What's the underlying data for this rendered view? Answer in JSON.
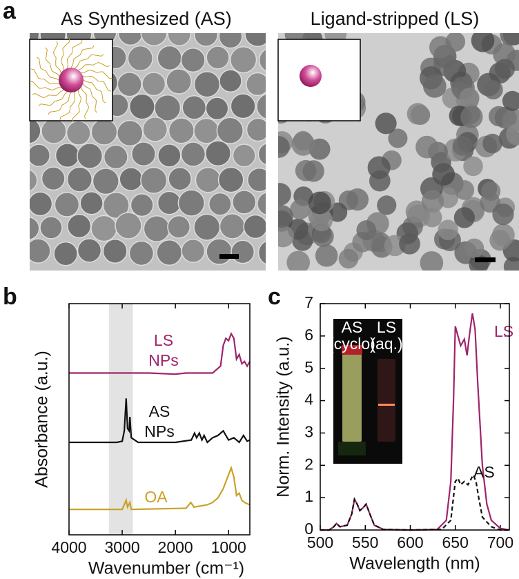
{
  "panel_labels": [
    "a",
    "b",
    "c"
  ],
  "images": [
    {
      "title": "As Synthesized (AS)"
    },
    {
      "title": "Ligand-stripped (LS)"
    }
  ],
  "chart_data": [
    {
      "type": "line",
      "xlabel": "Wavenumber (cm⁻¹)",
      "ylabel": "Absorbance (a.u.)",
      "xlim": [
        4000,
        600
      ],
      "xticks": [
        4000,
        3000,
        2000,
        1000
      ],
      "ylim": [
        0,
        10
      ],
      "shade": [
        3250,
        2800
      ],
      "annotations": [
        "LS",
        "NPs",
        "AS",
        "NPs",
        "OA"
      ],
      "series": [
        {
          "color": "#a0236a",
          "x": [
            4000,
            3000,
            2500,
            2000,
            1800,
            1300,
            1150,
            1100,
            1050,
            1000,
            950,
            900,
            850,
            800,
            750,
            700,
            650,
            600
          ],
          "values": [
            7.0,
            7.0,
            7.0,
            6.95,
            7.0,
            7.0,
            7.3,
            8.2,
            8.5,
            8.4,
            8.7,
            8.5,
            7.6,
            7.8,
            7.4,
            7.5,
            7.3,
            7.5
          ]
        },
        {
          "color": "#111111",
          "x": [
            4000,
            3100,
            3000,
            2960,
            2925,
            2900,
            2870,
            2855,
            2830,
            2700,
            2000,
            1700,
            1640,
            1600,
            1550,
            1500,
            1460,
            1400,
            1300,
            1200,
            1100,
            1050,
            1000,
            900,
            800,
            720,
            650,
            600
          ],
          "values": [
            4.0,
            4.0,
            4.05,
            4.5,
            5.9,
            4.6,
            4.5,
            5.1,
            4.2,
            4.0,
            4.0,
            4.1,
            4.4,
            4.2,
            4.4,
            4.1,
            4.3,
            4.0,
            4.2,
            4.3,
            4.5,
            4.3,
            4.1,
            4.2,
            4.0,
            4.3,
            4.05,
            4.1
          ]
        },
        {
          "color": "#c9a227",
          "x": [
            4000,
            3000,
            2925,
            2900,
            2855,
            2830,
            1800,
            1710,
            1650,
            1400,
            1300,
            1200,
            1100,
            1000,
            950,
            900,
            850,
            800,
            750,
            700,
            600
          ],
          "values": [
            1.1,
            1.1,
            1.5,
            1.2,
            1.4,
            1.1,
            1.15,
            1.4,
            1.2,
            1.3,
            1.4,
            1.6,
            2.0,
            2.6,
            2.9,
            2.5,
            1.7,
            1.8,
            1.5,
            1.4,
            1.3
          ]
        }
      ]
    },
    {
      "type": "line",
      "xlabel": "Wavelength (nm)",
      "ylabel": "Norm. Intensity (a.u.)",
      "xlim": [
        500,
        710
      ],
      "xticks": [
        500,
        550,
        600,
        650,
        700
      ],
      "ylim": [
        0,
        7
      ],
      "yticks": [
        0,
        1,
        2,
        3,
        4,
        5,
        6,
        7
      ],
      "inset_labels": [
        [
          "AS",
          "(cyclo)"
        ],
        [
          "LS",
          "(aq.)"
        ]
      ],
      "series": [
        {
          "name": "LS",
          "color": "#a0236a",
          "dash": false,
          "x": [
            500,
            510,
            515,
            518,
            522,
            530,
            535,
            538,
            541,
            544,
            548,
            551,
            555,
            560,
            570,
            600,
            630,
            640,
            645,
            648,
            650,
            653,
            656,
            660,
            663,
            666,
            669,
            672,
            675,
            680,
            685,
            690,
            700,
            710
          ],
          "values": [
            0,
            0,
            0.1,
            0.2,
            0.1,
            0.15,
            0.5,
            0.95,
            0.8,
            0.6,
            0.7,
            0.8,
            0.5,
            0.15,
            0.02,
            0,
            0.02,
            0.3,
            1.5,
            4,
            6.3,
            6.0,
            5.7,
            5.9,
            5.4,
            6.1,
            6.7,
            6.2,
            4.5,
            2,
            0.8,
            0.3,
            0.05,
            0
          ]
        },
        {
          "name": "AS",
          "color": "#111111",
          "dash": true,
          "x": [
            500,
            510,
            515,
            518,
            522,
            530,
            535,
            538,
            541,
            544,
            548,
            551,
            555,
            560,
            570,
            600,
            635,
            645,
            650,
            653,
            656,
            660,
            664,
            668,
            670,
            673,
            676,
            680,
            690,
            700,
            710
          ],
          "values": [
            0,
            0,
            0.1,
            0.2,
            0.1,
            0.15,
            0.5,
            0.95,
            0.8,
            0.6,
            0.7,
            0.8,
            0.5,
            0.15,
            0.02,
            0,
            0.02,
            0.3,
            1.5,
            1.6,
            1.4,
            1.5,
            1.4,
            1.6,
            1.7,
            1.5,
            1.0,
            0.4,
            0.1,
            0,
            0
          ]
        }
      ]
    }
  ]
}
